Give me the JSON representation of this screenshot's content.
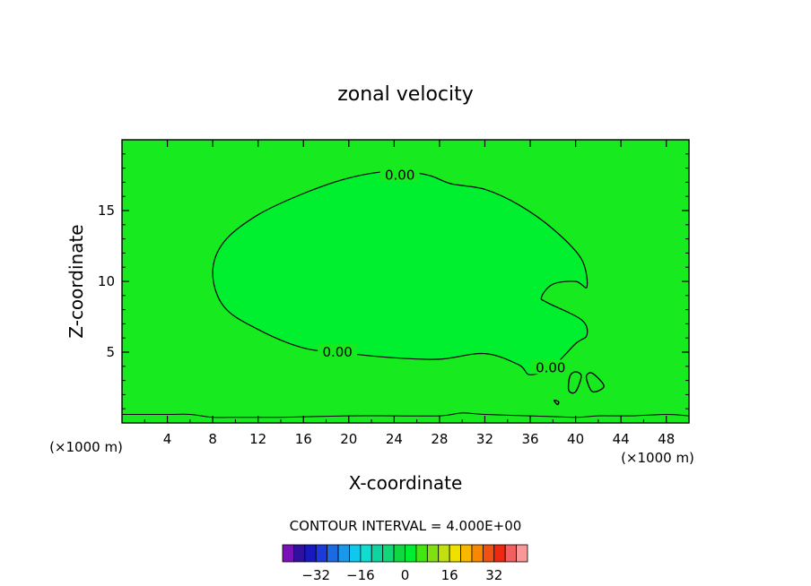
{
  "chart_data": {
    "type": "contour",
    "title": "zonal velocity",
    "xlabel": "X-coordinate",
    "ylabel": "Z-coordinate",
    "x_unit_label": "(×1000 m)",
    "x_unit_label_right": "(×1000 m)",
    "xlim": [
      0,
      50
    ],
    "ylim": [
      0,
      20
    ],
    "x_ticks": [
      4,
      8,
      12,
      16,
      20,
      24,
      28,
      32,
      36,
      40,
      44,
      48
    ],
    "y_ticks": [
      5,
      10,
      15
    ],
    "contour_levels": [
      {
        "label": "0.00",
        "label_at": [
          [
            24.5,
            17.5
          ],
          [
            19,
            5.0
          ],
          [
            37.8,
            3.9
          ]
        ]
      }
    ],
    "zero_contour": [
      [
        24,
        17.8
      ],
      [
        20,
        17.3
      ],
      [
        16,
        16.2
      ],
      [
        12,
        14.7
      ],
      [
        9,
        12.8
      ],
      [
        8,
        10.6
      ],
      [
        9,
        8.2
      ],
      [
        12,
        6.6
      ],
      [
        16,
        5.3
      ],
      [
        20,
        4.9
      ],
      [
        24,
        4.6
      ],
      [
        28,
        4.5
      ],
      [
        32,
        4.9
      ],
      [
        35,
        4.1
      ],
      [
        36,
        3.4
      ],
      [
        38,
        4.0
      ],
      [
        40,
        5.6
      ],
      [
        41,
        6.2
      ],
      [
        40.5,
        7.3
      ],
      [
        37.5,
        8.5
      ],
      [
        37,
        8.9
      ],
      [
        38,
        9.8
      ],
      [
        40,
        10.0
      ],
      [
        41,
        9.6
      ],
      [
        40.5,
        11.6
      ],
      [
        38,
        13.7
      ],
      [
        35,
        15.4
      ],
      [
        32,
        16.5
      ],
      [
        29,
        16.9
      ],
      [
        27,
        17.5
      ],
      [
        24,
        17.8
      ]
    ],
    "small_contours": [
      [
        [
          39.5,
          3.3
        ],
        [
          40,
          3.6
        ],
        [
          40.5,
          3.3
        ],
        [
          40,
          2.2
        ],
        [
          39.4,
          2.3
        ],
        [
          39.5,
          3.3
        ]
      ],
      [
        [
          41,
          3.4
        ],
        [
          41.5,
          3.5
        ],
        [
          42.5,
          2.6
        ],
        [
          41.5,
          2.2
        ],
        [
          41,
          3.0
        ],
        [
          41,
          3.4
        ]
      ],
      [
        [
          38.1,
          1.6
        ],
        [
          38.5,
          1.5
        ],
        [
          38.4,
          1.3
        ],
        [
          38.1,
          1.6
        ]
      ]
    ],
    "surface_contour": [
      [
        0,
        0.6
      ],
      [
        4,
        0.6
      ],
      [
        6,
        0.6
      ],
      [
        8,
        0.4
      ],
      [
        10,
        0.4
      ],
      [
        14,
        0.4
      ],
      [
        20,
        0.5
      ],
      [
        24,
        0.5
      ],
      [
        28,
        0.5
      ],
      [
        30,
        0.7
      ],
      [
        32,
        0.6
      ],
      [
        36,
        0.5
      ],
      [
        40,
        0.4
      ],
      [
        42,
        0.5
      ],
      [
        45,
        0.5
      ],
      [
        48,
        0.6
      ],
      [
        50,
        0.5
      ]
    ],
    "background_level": 0,
    "colorbar": {
      "title": "CONTOUR INTERVAL = 4.000E+00",
      "interval": 4.0,
      "tick_labels": [
        "−32",
        "−16",
        "0",
        "16",
        "32"
      ],
      "tick_values": [
        -32,
        -16,
        0,
        16,
        32
      ],
      "colors": [
        "#7a11b8",
        "#30109e",
        "#1818c0",
        "#1a3adc",
        "#1a6ae6",
        "#1a98ea",
        "#10c8ee",
        "#10dcd0",
        "#10d4a0",
        "#10d878",
        "#10d840",
        "#00ee30",
        "#40e810",
        "#80e010",
        "#c0e010",
        "#f0e000",
        "#f8b800",
        "#f88800",
        "#f05010",
        "#f02810",
        "#f06060",
        "#f89898"
      ]
    },
    "colors": {
      "field_fill": "#18ea20",
      "inner_fill": "#00f030",
      "contour_line": "#000000"
    }
  }
}
